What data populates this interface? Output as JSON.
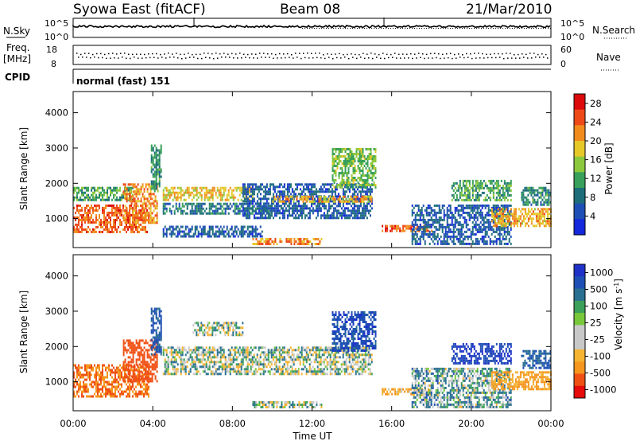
{
  "header": {
    "station": "Syowa East (fitACF)",
    "beam": "Beam 08",
    "date": "21/Mar/2010"
  },
  "top_panels": {
    "nsky_label": "N.Sky",
    "nsky_ticks": [
      "10^5",
      "10^0"
    ],
    "nsearch_label": "N.Search",
    "nsearch_ticks": [
      "10^5",
      "10^0"
    ],
    "freq_label_1": "Freq.",
    "freq_label_2": "[MHz]",
    "freq_ticks": [
      "18",
      "8"
    ],
    "nave_label": "Nave",
    "nave_ticks": [
      "60",
      "0"
    ],
    "cpid_label": "CPID",
    "cpid_value": "normal (fast) 151"
  },
  "colors": {
    "power": [
      "#1428dc",
      "#1e4fb4",
      "#1d6e7a",
      "#38a05a",
      "#8cc83c",
      "#e6c828",
      "#f08c1e",
      "#ee4a18",
      "#dc0a0a"
    ],
    "velocity": [
      "#e60a0a",
      "#f05014",
      "#f5961e",
      "#f5b432",
      "#c8c8c8",
      "#c8c8c8",
      "#78c83c",
      "#3ca05a",
      "#2a7090",
      "#1e50b4",
      "#1e32c8"
    ]
  },
  "chart_data": [
    {
      "type": "heatmap",
      "panel": "power",
      "xlabel": "Time UT",
      "ylabel": "Slant Range [km]",
      "x_ticks": [
        "00:00",
        "04:00",
        "08:00",
        "12:00",
        "16:00",
        "20:00",
        "00:00"
      ],
      "x_range_hours": [
        0,
        24
      ],
      "y_ticks": [
        1000,
        2000,
        3000,
        4000
      ],
      "ylim": [
        180,
        4600
      ],
      "colorbar_label": "Power [dB]",
      "colorbar_ticks": [
        4,
        8,
        12,
        16,
        20,
        24,
        28
      ],
      "colorbar_range": [
        0,
        30
      ],
      "regions": [
        {
          "t": [
            0.0,
            3.8
          ],
          "r": [
            600,
            1400
          ],
          "v": 24
        },
        {
          "t": [
            0.0,
            3.0
          ],
          "r": [
            1500,
            1900
          ],
          "v": 12
        },
        {
          "t": [
            2.5,
            4.2
          ],
          "r": [
            900,
            2000
          ],
          "v": 22
        },
        {
          "t": [
            3.9,
            4.4
          ],
          "r": [
            1800,
            3100
          ],
          "v": 10
        },
        {
          "t": [
            4.5,
            9.0
          ],
          "r": [
            1500,
            1900
          ],
          "v": 18
        },
        {
          "t": [
            4.5,
            10.0
          ],
          "r": [
            1150,
            1450
          ],
          "v": 8
        },
        {
          "t": [
            4.5,
            9.5
          ],
          "r": [
            500,
            800
          ],
          "v": 6
        },
        {
          "t": [
            8.5,
            15.0
          ],
          "r": [
            1000,
            2000
          ],
          "v": 6
        },
        {
          "t": [
            10.0,
            15.0
          ],
          "r": [
            1500,
            1650
          ],
          "v": 20
        },
        {
          "t": [
            9.0,
            12.5
          ],
          "r": [
            250,
            450
          ],
          "v": 22
        },
        {
          "t": [
            13.0,
            15.2
          ],
          "r": [
            1900,
            3000
          ],
          "v": 14
        },
        {
          "t": [
            15.5,
            18.0
          ],
          "r": [
            620,
            820
          ],
          "v": 24
        },
        {
          "t": [
            17.0,
            22.0
          ],
          "r": [
            300,
            1400
          ],
          "v": 6
        },
        {
          "t": [
            19.0,
            22.0
          ],
          "r": [
            1500,
            2100
          ],
          "v": 12
        },
        {
          "t": [
            21.0,
            24.0
          ],
          "r": [
            800,
            1300
          ],
          "v": 20
        },
        {
          "t": [
            22.5,
            24.0
          ],
          "r": [
            1400,
            1900
          ],
          "v": 10
        }
      ]
    },
    {
      "type": "heatmap",
      "panel": "velocity",
      "xlabel": "Time UT",
      "ylabel": "Slant Range [km]",
      "x_ticks": [
        "00:00",
        "04:00",
        "08:00",
        "12:00",
        "16:00",
        "20:00",
        "00:00"
      ],
      "x_range_hours": [
        0,
        24
      ],
      "y_ticks": [
        1000,
        2000,
        3000,
        4000
      ],
      "ylim": [
        180,
        4600
      ],
      "colorbar_label": "Velocity [m s-1]",
      "colorbar_ticks": [
        "1000",
        "500",
        "100",
        "25",
        "-25",
        "-100",
        "-500",
        "-1000"
      ],
      "regions": [
        {
          "t": [
            0.0,
            3.8
          ],
          "r": [
            600,
            1500
          ],
          "v": -500
        },
        {
          "t": [
            2.5,
            4.2
          ],
          "r": [
            1000,
            2200
          ],
          "v": -800
        },
        {
          "t": [
            3.9,
            4.4
          ],
          "r": [
            1800,
            3100
          ],
          "v": 300
        },
        {
          "t": [
            4.5,
            15.0
          ],
          "r": [
            1200,
            2000
          ],
          "v": 0
        },
        {
          "t": [
            6.0,
            8.5
          ],
          "r": [
            2300,
            2700
          ],
          "v": 0
        },
        {
          "t": [
            9.0,
            12.5
          ],
          "r": [
            250,
            450
          ],
          "v": 0
        },
        {
          "t": [
            13.0,
            15.2
          ],
          "r": [
            1900,
            3000
          ],
          "v": 400
        },
        {
          "t": [
            15.5,
            18.0
          ],
          "r": [
            620,
            820
          ],
          "v": -200
        },
        {
          "t": [
            17.0,
            22.0
          ],
          "r": [
            300,
            1400
          ],
          "v": 80
        },
        {
          "t": [
            19.0,
            22.0
          ],
          "r": [
            1500,
            2100
          ],
          "v": 500
        },
        {
          "t": [
            21.0,
            24.0
          ],
          "r": [
            800,
            1300
          ],
          "v": -300
        },
        {
          "t": [
            22.5,
            24.0
          ],
          "r": [
            1400,
            1900
          ],
          "v": 300
        }
      ]
    }
  ]
}
